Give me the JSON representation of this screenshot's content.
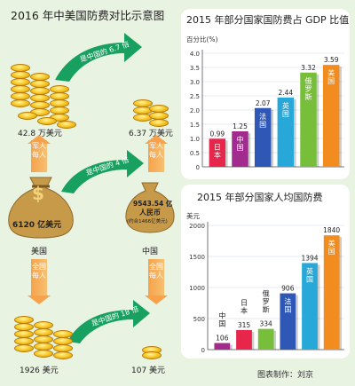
{
  "left": {
    "title": "2016 年中美国防费对比示意图",
    "top_arrow_text": "是中国的 6.7 倍",
    "middle_arrow_text": "是中国的 4 倍",
    "bottom_arrow_text": "是中国的 18 倍",
    "us_per_soldier": "42.8 万美元",
    "cn_per_soldier": "6.37 万美元",
    "per_soldier_tag": "军人每人",
    "us_total": "6120 亿美元",
    "cn_total_line1": "9543.54 亿",
    "cn_total_line2": "人民币",
    "cn_total_line3": "(约合1466亿美元)",
    "us_label": "美国",
    "cn_label": "中国",
    "per_capita_tag": "全国每人",
    "us_per_capita": "1926 美元",
    "cn_per_capita": "107 美元",
    "dollar_sign": "$"
  },
  "gdp_panel": {
    "title": "2015 年部分国家国防费占 GDP 比值",
    "unit": "百分比(%)"
  },
  "capita_panel": {
    "title": "2015 年部分国家人均国防费",
    "unit": "美元"
  },
  "footer": {
    "credit": "图表制作：刘京"
  },
  "colors": {
    "japan": "#e8254b",
    "china": "#a22c8e",
    "france": "#2f58b6",
    "uk": "#27a8d8",
    "russia": "#77bf3a",
    "usa": "#f28c1e",
    "arrow_green": "#17a060",
    "coin_gold": "#f6c52e",
    "bag": "#c79a4a"
  },
  "chart_data": [
    {
      "type": "bar",
      "title": "2015 年部分国家国防费占 GDP 比值",
      "ylabel": "百分比(%)",
      "categories": [
        "日本",
        "中国",
        "法国",
        "英国",
        "俄罗斯",
        "美国"
      ],
      "values": [
        0.99,
        1.25,
        2.07,
        2.44,
        3.32,
        3.59
      ],
      "value_labels": [
        "0.99",
        "1.25",
        "2.07",
        "2.44",
        "3.32",
        "3.59"
      ],
      "yticks": [
        "0",
        "0.5",
        "1.0",
        "1.5",
        "2.0",
        "2.5",
        "3.0",
        "3.5",
        "4.0"
      ],
      "ylim": [
        0,
        4
      ],
      "colors": [
        "#e8254b",
        "#a22c8e",
        "#2f58b6",
        "#27a8d8",
        "#77bf3a",
        "#f28c1e"
      ]
    },
    {
      "type": "bar",
      "title": "2015 年部分国家人均国防费",
      "ylabel": "美元",
      "categories": [
        "中国",
        "日本",
        "俄罗斯",
        "法国",
        "英国",
        "美国"
      ],
      "values": [
        106,
        315,
        334,
        906,
        1394,
        1840
      ],
      "value_labels": [
        "106",
        "315",
        "334",
        "906",
        "1394",
        "1840"
      ],
      "yticks": [
        "0",
        "500",
        "1000",
        "1500",
        "2000"
      ],
      "ylim": [
        0,
        2000
      ],
      "colors": [
        "#a22c8e",
        "#e8254b",
        "#77bf3a",
        "#2f58b6",
        "#27a8d8",
        "#f28c1e"
      ]
    }
  ]
}
